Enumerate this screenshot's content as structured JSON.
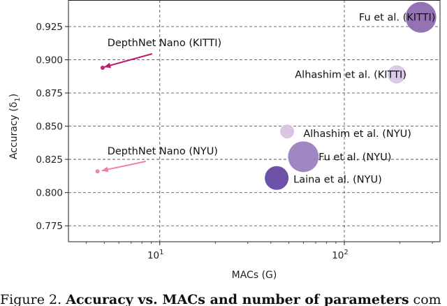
{
  "chart_data": {
    "type": "scatter",
    "xscale": "log",
    "xlim": [
      3.2,
      330
    ],
    "ylim": [
      0.763,
      0.945
    ],
    "xlabel": "MACs (G)",
    "ylabel": "Accuracy (δ1)",
    "grid": true,
    "yticks": [
      {
        "value": 0.775,
        "label": "0.775"
      },
      {
        "value": 0.8,
        "label": "0.800"
      },
      {
        "value": 0.825,
        "label": "0.825"
      },
      {
        "value": 0.85,
        "label": "0.850"
      },
      {
        "value": 0.875,
        "label": "0.875"
      },
      {
        "value": 0.9,
        "label": "0.900"
      },
      {
        "value": 0.925,
        "label": "0.925"
      }
    ],
    "xticks": [
      {
        "value": 10,
        "base": "10",
        "exp": "1"
      },
      {
        "value": 100,
        "base": "10",
        "exp": "2"
      }
    ],
    "points": [
      {
        "label": "Fu et al. (KITTI)",
        "x": 260,
        "y": 0.932,
        "size": 22,
        "color": "#8e6bb0"
      },
      {
        "label": "Alhashim et al. (KITTI)",
        "x": 192,
        "y": 0.889,
        "size": 13,
        "color": "#d9c6e4"
      },
      {
        "label": "Alhashim et al. (NYU)",
        "x": 49,
        "y": 0.846,
        "size": 10,
        "color": "#d7c3e2"
      },
      {
        "label": "Fu et al. (NYU)",
        "x": 60,
        "y": 0.827,
        "size": 22,
        "color": "#9d80c0"
      },
      {
        "label": "Laina et al. (NYU)",
        "x": 43,
        "y": 0.811,
        "size": 17,
        "color": "#6648a3"
      },
      {
        "label": "DepthNet Nano (KITTI)",
        "x": 4.9,
        "y": 0.894,
        "size": 3,
        "color": "#c2186b"
      },
      {
        "label": "DepthNet Nano (NYU)",
        "x": 4.6,
        "y": 0.816,
        "size": 3,
        "color": "#f27fa0"
      }
    ],
    "arrows": [
      {
        "from_x": 9.1,
        "from_y": 0.9045,
        "to_x": 5.0,
        "to_y": 0.8945,
        "color": "#c2186b"
      },
      {
        "from_x": 8.4,
        "from_y": 0.8235,
        "to_x": 4.85,
        "to_y": 0.8165,
        "color": "#f27fa0"
      }
    ],
    "annotations": [
      {
        "text": "Fu et al. (KITTI)",
        "x": 120,
        "y": 0.932
      },
      {
        "text": "Alhashim et al. (KITTI)",
        "x": 54,
        "y": 0.889
      },
      {
        "text": "Alhashim et al. (NYU)",
        "x": 60,
        "y": 0.8445
      },
      {
        "text": "Fu et al. (NYU)",
        "x": 72.5,
        "y": 0.827
      },
      {
        "text": "Laina et al. (NYU)",
        "x": 53,
        "y": 0.81
      },
      {
        "text": "DepthNet Nano (KITTI)",
        "x": 5.2,
        "y": 0.913
      },
      {
        "text": "DepthNet Nano (NYU)",
        "x": 5.2,
        "y": 0.8315
      }
    ]
  },
  "caption": {
    "prefix": "Figure 2. ",
    "bold": "Accuracy vs. MACs and number of parameters",
    "suffix": " com"
  }
}
